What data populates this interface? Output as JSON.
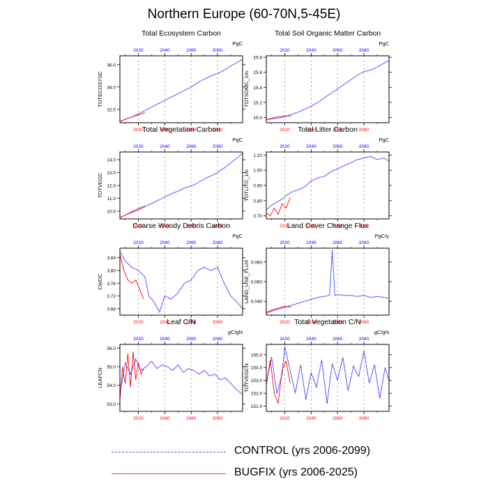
{
  "title": "Northern Europe (60-70N,5-45E)",
  "legend": {
    "control": "CONTROL (yrs 2006-2099)",
    "bugfix": "BUGFIX (yrs 2006-2025)"
  },
  "colors": {
    "control": "#0000ff",
    "bugfix": "#ff0000",
    "top_ticks": "#0000ff",
    "bottom_ticks": "#ff0000",
    "legend_control": "#8a3fd6"
  },
  "chart_data": [
    {
      "type": "line",
      "title": "Total Ecosystem Carbon",
      "ylabel": "TOTECOSYSC",
      "units": "PgC",
      "xlim": [
        2006,
        2099
      ],
      "xticks": [
        2020,
        2040,
        2060,
        2080
      ],
      "ylim": [
        30.8,
        36.8
      ],
      "yticks": [
        "32.0",
        "34.0",
        "36.0"
      ],
      "ytick_values": [
        32.0,
        34.0,
        36.0
      ],
      "series": [
        {
          "key": "control",
          "x": [
            2006,
            2010,
            2015,
            2020,
            2025,
            2030,
            2035,
            2040,
            2045,
            2050,
            2055,
            2060,
            2065,
            2070,
            2075,
            2080,
            2085,
            2090,
            2095,
            2099
          ],
          "y": [
            30.9,
            31.1,
            31.3,
            31.6,
            31.9,
            32.2,
            32.5,
            32.8,
            33.1,
            33.4,
            33.7,
            34.0,
            34.4,
            34.7,
            35.0,
            35.2,
            35.5,
            35.9,
            36.2,
            36.5
          ]
        },
        {
          "key": "bugfix",
          "x": [
            2006,
            2010,
            2015,
            2020,
            2025
          ],
          "y": [
            30.9,
            31.1,
            31.3,
            31.5,
            31.7
          ]
        }
      ]
    },
    {
      "type": "line",
      "title": "Total Soil Organic Matter Carbon",
      "ylabel": "TOTSOMC_1m",
      "units": "PgC",
      "xlim": [
        2006,
        2099
      ],
      "xticks": [
        2020,
        2040,
        2060,
        2080
      ],
      "ylim": [
        14.93,
        15.82
      ],
      "yticks": [
        "15.0",
        "15.2",
        "15.4",
        "15.6",
        "15.8"
      ],
      "ytick_values": [
        15.0,
        15.2,
        15.4,
        15.6,
        15.8
      ],
      "series": [
        {
          "key": "control",
          "x": [
            2006,
            2010,
            2015,
            2020,
            2025,
            2030,
            2035,
            2040,
            2045,
            2050,
            2055,
            2060,
            2065,
            2070,
            2075,
            2080,
            2085,
            2090,
            2095,
            2099
          ],
          "y": [
            14.97,
            14.98,
            14.99,
            15.01,
            15.04,
            15.07,
            15.11,
            15.15,
            15.2,
            15.26,
            15.32,
            15.38,
            15.44,
            15.5,
            15.56,
            15.61,
            15.63,
            15.67,
            15.72,
            15.76
          ]
        },
        {
          "key": "bugfix",
          "x": [
            2006,
            2010,
            2015,
            2020,
            2025
          ],
          "y": [
            14.97,
            14.99,
            15.01,
            15.02,
            15.02
          ]
        }
      ]
    },
    {
      "type": "line",
      "title": "Total Vegetation Carbon",
      "ylabel": "TOTVEGC",
      "units": "PgC",
      "xlim": [
        2006,
        2099
      ],
      "xticks": [
        2020,
        2040,
        2060,
        2080
      ],
      "ylim": [
        9.4,
        14.6
      ],
      "yticks": [
        "10.0",
        "11.0",
        "12.0",
        "13.0",
        "14.0"
      ],
      "ytick_values": [
        10.0,
        11.0,
        12.0,
        13.0,
        14.0
      ],
      "series": [
        {
          "key": "control",
          "x": [
            2006,
            2010,
            2015,
            2020,
            2025,
            2030,
            2035,
            2040,
            2045,
            2050,
            2055,
            2060,
            2065,
            2070,
            2075,
            2080,
            2085,
            2090,
            2095,
            2099
          ],
          "y": [
            9.5,
            9.7,
            9.9,
            10.1,
            10.35,
            10.6,
            10.85,
            11.1,
            11.35,
            11.55,
            11.8,
            11.95,
            12.2,
            12.5,
            12.75,
            13.0,
            13.35,
            13.75,
            14.15,
            14.5
          ]
        },
        {
          "key": "bugfix",
          "x": [
            2006,
            2010,
            2015,
            2020,
            2025
          ],
          "y": [
            9.5,
            9.7,
            9.95,
            10.2,
            10.4
          ]
        }
      ]
    },
    {
      "type": "line",
      "title": "Total Litter Carbon",
      "ylabel": "TOTLITC_1m",
      "units": "PgC",
      "xlim": [
        2006,
        2099
      ],
      "xticks": [
        2020,
        2040,
        2060,
        2080
      ],
      "ylim": [
        0.68,
        1.12
      ],
      "yticks": [
        "0.70",
        "0.80",
        "0.90",
        "1.00",
        "1.10"
      ],
      "ytick_values": [
        0.7,
        0.8,
        0.9,
        1.0,
        1.1
      ],
      "series": [
        {
          "key": "control",
          "x": [
            2006,
            2010,
            2014,
            2018,
            2022,
            2026,
            2030,
            2035,
            2040,
            2045,
            2050,
            2055,
            2060,
            2065,
            2070,
            2075,
            2080,
            2085,
            2090,
            2095,
            2099
          ],
          "y": [
            0.74,
            0.77,
            0.79,
            0.81,
            0.84,
            0.86,
            0.87,
            0.89,
            0.93,
            0.95,
            0.96,
            0.99,
            1.01,
            1.03,
            1.05,
            1.07,
            1.08,
            1.09,
            1.07,
            1.08,
            1.06
          ]
        },
        {
          "key": "bugfix",
          "x": [
            2006,
            2009,
            2012,
            2015,
            2018,
            2021,
            2024
          ],
          "y": [
            0.72,
            0.7,
            0.75,
            0.71,
            0.78,
            0.75,
            0.82
          ]
        }
      ]
    },
    {
      "type": "line",
      "title": "Coarse Woody Debris Carbon",
      "ylabel": "CWDC",
      "units": "PgC",
      "xlim": [
        2006,
        2099
      ],
      "xticks": [
        2020,
        2040,
        2060,
        2080
      ],
      "ylim": [
        3.66,
        3.87
      ],
      "yticks": [
        "3.68",
        "3.72",
        "3.76",
        "3.80",
        "3.84"
      ],
      "ytick_values": [
        3.68,
        3.72,
        3.76,
        3.8,
        3.84
      ],
      "series": [
        {
          "key": "control",
          "x": [
            2006,
            2010,
            2015,
            2020,
            2025,
            2028,
            2032,
            2036,
            2040,
            2045,
            2050,
            2055,
            2060,
            2065,
            2070,
            2075,
            2080,
            2085,
            2090,
            2095,
            2099
          ],
          "y": [
            3.86,
            3.83,
            3.81,
            3.8,
            3.78,
            3.72,
            3.7,
            3.67,
            3.72,
            3.71,
            3.73,
            3.76,
            3.77,
            3.8,
            3.81,
            3.8,
            3.81,
            3.76,
            3.72,
            3.7,
            3.68
          ]
        },
        {
          "key": "bugfix",
          "x": [
            2006,
            2009,
            2012,
            2015,
            2018,
            2021,
            2024
          ],
          "y": [
            3.85,
            3.8,
            3.77,
            3.76,
            3.77,
            3.74,
            3.71
          ]
        }
      ]
    },
    {
      "type": "line",
      "title": "Land Cover Change Flux",
      "ylabel": "LAND_USE_FLUX",
      "units": "PgC/y",
      "xlim": [
        2006,
        2099
      ],
      "xticks": [
        2020,
        2040,
        2060,
        2080
      ],
      "ylim": [
        0.026,
        0.094
      ],
      "yticks": [
        "0.040",
        "0.060",
        "0.080"
      ],
      "ytick_values": [
        0.04,
        0.06,
        0.08
      ],
      "series": [
        {
          "key": "control",
          "x": [
            2006,
            2010,
            2015,
            2020,
            2025,
            2030,
            2035,
            2040,
            2045,
            2050,
            2054,
            2056,
            2058,
            2060,
            2065,
            2070,
            2075,
            2080,
            2085,
            2090,
            2095,
            2099
          ],
          "y": [
            0.028,
            0.03,
            0.032,
            0.034,
            0.036,
            0.038,
            0.04,
            0.042,
            0.044,
            0.045,
            0.046,
            0.092,
            0.046,
            0.047,
            0.046,
            0.046,
            0.045,
            0.046,
            0.044,
            0.045,
            0.044,
            0.043
          ]
        },
        {
          "key": "bugfix",
          "x": [
            2006,
            2010,
            2015,
            2020,
            2025
          ],
          "y": [
            0.029,
            0.031,
            0.033,
            0.035,
            0.034
          ]
        }
      ]
    },
    {
      "type": "line",
      "title": "Leaf C/N",
      "ylabel": "LEAFCN",
      "units": "gC/gN",
      "xlim": [
        2006,
        2099
      ],
      "xticks": [
        2020,
        2040,
        2060,
        2080
      ],
      "ylim": [
        52.6,
        56.2
      ],
      "yticks": [
        "53.0",
        "54.0",
        "55.0",
        "56.0"
      ],
      "ytick_values": [
        53.0,
        54.0,
        55.0,
        56.0
      ],
      "series": [
        {
          "key": "control",
          "x": [
            2006,
            2010,
            2014,
            2018,
            2022,
            2026,
            2030,
            2034,
            2038,
            2042,
            2046,
            2050,
            2054,
            2058,
            2062,
            2066,
            2070,
            2074,
            2078,
            2082,
            2086,
            2090,
            2094,
            2099
          ],
          "y": [
            53.5,
            55.2,
            54.6,
            55.4,
            54.8,
            55.0,
            55.3,
            54.9,
            55.1,
            55.0,
            54.8,
            55.1,
            54.7,
            54.9,
            54.8,
            54.6,
            54.8,
            54.5,
            54.6,
            54.3,
            54.4,
            54.1,
            53.8,
            53.5
          ]
        },
        {
          "key": "bugfix",
          "x": [
            2006,
            2008,
            2010,
            2012,
            2014,
            2016,
            2018,
            2020,
            2022,
            2024
          ],
          "y": [
            53.2,
            55.0,
            54.1,
            55.7,
            53.9,
            55.8,
            54.3,
            55.2,
            54.6,
            54.9
          ]
        }
      ]
    },
    {
      "type": "line",
      "title": "Total Vegetation C/N",
      "ylabel": "TOTVEGCN",
      "units": "gC/gN",
      "xlim": [
        2006,
        2099
      ],
      "xticks": [
        2020,
        2040,
        2060,
        2080
      ],
      "ylim": [
        150.6,
        155.8
      ],
      "yticks": [
        "151.0",
        "152.0",
        "153.0",
        "154.0",
        "155.0"
      ],
      "ytick_values": [
        151.0,
        152.0,
        153.0,
        154.0,
        155.0
      ],
      "series": [
        {
          "key": "control",
          "x": [
            2006,
            2010,
            2014,
            2018,
            2020,
            2024,
            2028,
            2032,
            2036,
            2040,
            2044,
            2048,
            2052,
            2056,
            2060,
            2064,
            2068,
            2072,
            2076,
            2080,
            2084,
            2088,
            2092,
            2096,
            2099
          ],
          "y": [
            152.8,
            154.8,
            152.0,
            153.5,
            155.6,
            153.8,
            152.0,
            154.2,
            151.5,
            153.6,
            152.5,
            154.6,
            151.2,
            154.3,
            153.0,
            154.8,
            152.2,
            154.1,
            153.3,
            155.3,
            152.8,
            154.2,
            151.6,
            154.0,
            153.0
          ]
        },
        {
          "key": "bugfix",
          "x": [
            2006,
            2009,
            2012,
            2015,
            2018,
            2021,
            2024
          ],
          "y": [
            152.6,
            154.6,
            152.0,
            151.2,
            153.8,
            154.5,
            152.8
          ]
        }
      ]
    }
  ]
}
